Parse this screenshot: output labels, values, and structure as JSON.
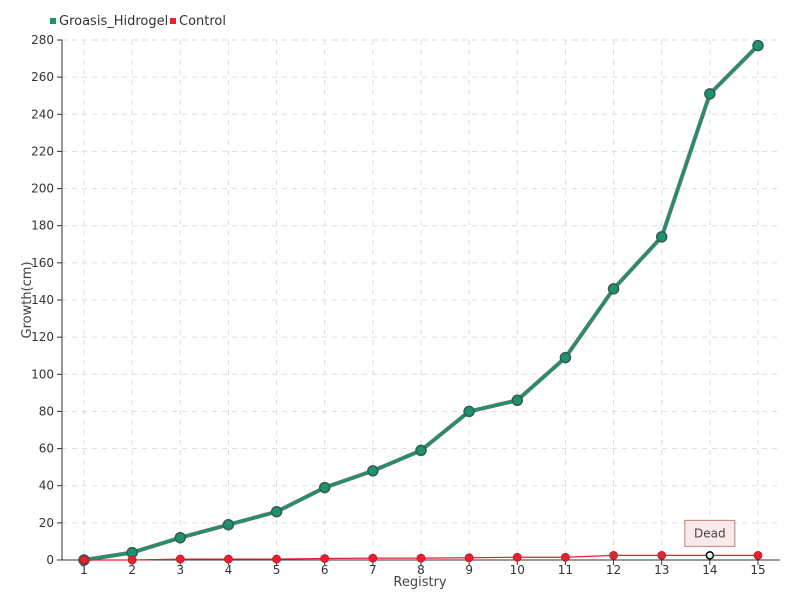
{
  "chart_data": {
    "type": "line",
    "title": "",
    "xlabel": "Registry",
    "ylabel": "Growth(cm)",
    "x": [
      1,
      2,
      3,
      4,
      5,
      6,
      7,
      8,
      9,
      10,
      11,
      12,
      13,
      14,
      15
    ],
    "ylim": [
      0,
      280
    ],
    "yticks": [
      0,
      20,
      40,
      60,
      80,
      100,
      120,
      140,
      160,
      180,
      200,
      220,
      240,
      260,
      280
    ],
    "grid": true,
    "legend_position": "top-left",
    "series": [
      {
        "name": "Groasis_Hidrogel",
        "color": "#1a9470",
        "values": [
          0,
          4,
          12,
          19,
          26,
          39,
          48,
          59,
          80,
          86,
          109,
          146,
          174,
          251,
          277
        ]
      },
      {
        "name": "Control",
        "color": "#e8212f",
        "values": [
          0,
          0,
          0.5,
          0.5,
          0.5,
          0.8,
          1,
          1,
          1.2,
          1.5,
          1.5,
          2.5,
          2.5,
          2.5,
          2.5
        ]
      }
    ],
    "annotations": [
      {
        "text": "Dead",
        "x": 14,
        "series": "Control"
      }
    ]
  }
}
